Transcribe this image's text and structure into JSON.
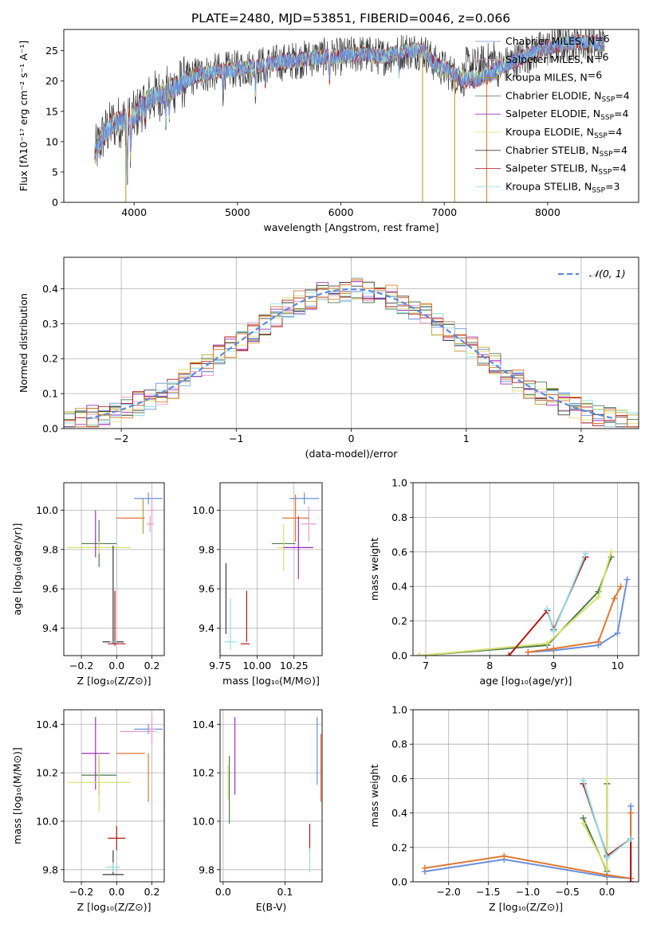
{
  "figure_title": "PLATE=2480, MJD=53851, FIBERID=0046, z=0.066",
  "model_colors": [
    "#6a8fdb",
    "#e89ad0",
    "#b8a030",
    "#4f7a4f",
    "#9a30c0",
    "#d9e070",
    "#3a3a3a",
    "#b01818",
    "#90e0e8"
  ],
  "emph_colors": {
    "orange": "#e07830",
    "purple": "#9a30c0"
  },
  "legend": {
    "entries": [
      {
        "name": "Chabrier MILES",
        "sub": "",
        "suffix": "=6"
      },
      {
        "name": "Salpeter MILES",
        "sub": "",
        "suffix": "=6"
      },
      {
        "name": "Kroupa MILES",
        "sub": "",
        "suffix": "=6"
      },
      {
        "name": "Chabrier ELODIE",
        "sub": "SSP",
        "suffix": "=4"
      },
      {
        "name": "Salpeter ELODIE",
        "sub": "SSP",
        "suffix": "=4"
      },
      {
        "name": "Kroupa ELODIE",
        "sub": "SSP",
        "suffix": "=4"
      },
      {
        "name": "Chabrier STELIB",
        "sub": "SSP",
        "suffix": "=4"
      },
      {
        "name": "Salpeter STELIB",
        "sub": "SSP",
        "suffix": "=4"
      },
      {
        "name": "Kroupa STELIB",
        "sub": "SSP",
        "suffix": "=3"
      }
    ],
    "gauss_label": "𝒩(0, 1)"
  },
  "chart_data": [
    {
      "id": "spectrum",
      "type": "line",
      "xlabel": "wavelength [Angstrom, rest frame]",
      "ylabel": "Flux [f_λ10^-17 erg cm^-2 s^-1 A^-1]",
      "xlim": [
        3320,
        8880
      ],
      "ylim": [
        0,
        28.5
      ],
      "xticks": [
        4000,
        5000,
        6000,
        7000,
        8000
      ],
      "yticks": [
        0,
        5,
        10,
        15,
        20,
        25
      ],
      "continuum": [
        [
          3620,
          8
        ],
        [
          3700,
          11
        ],
        [
          3800,
          13
        ],
        [
          3900,
          13.5
        ],
        [
          4000,
          14
        ],
        [
          4100,
          16.5
        ],
        [
          4200,
          17.5
        ],
        [
          4300,
          18
        ],
        [
          4400,
          19
        ],
        [
          4600,
          21
        ],
        [
          4800,
          21.5
        ],
        [
          5000,
          22
        ],
        [
          5200,
          22.5
        ],
        [
          5400,
          23
        ],
        [
          5600,
          23.5
        ],
        [
          5800,
          24
        ],
        [
          6000,
          24
        ],
        [
          6200,
          24.5
        ],
        [
          6400,
          24
        ],
        [
          6600,
          25
        ],
        [
          6800,
          25
        ],
        [
          6900,
          23
        ],
        [
          7000,
          22
        ],
        [
          7100,
          21
        ],
        [
          7200,
          20.5
        ],
        [
          7300,
          20.5
        ],
        [
          7400,
          21
        ],
        [
          7500,
          22
        ],
        [
          7700,
          23.5
        ],
        [
          7900,
          25
        ],
        [
          8100,
          26
        ],
        [
          8300,
          26.5
        ],
        [
          8500,
          26
        ]
      ],
      "absorption_lines": [
        [
          3934,
          10
        ],
        [
          3968,
          6
        ],
        [
          4101,
          3
        ],
        [
          4304,
          4
        ],
        [
          4340,
          3
        ],
        [
          4861,
          3
        ],
        [
          5175,
          4
        ],
        [
          5270,
          3
        ],
        [
          5890,
          4
        ],
        [
          6563,
          4
        ]
      ],
      "spikes": [
        [
          3920,
          0
        ],
        [
          6790,
          0
        ],
        [
          7100,
          0
        ],
        [
          7410,
          0
        ],
        [
          8550,
          26
        ]
      ]
    },
    {
      "id": "residuals",
      "type": "histogram",
      "xlabel": "(data-model)/error",
      "ylabel": "Normed distribution",
      "xlim": [
        -2.5,
        2.5
      ],
      "ylim": [
        0,
        0.49
      ],
      "xticks": [
        -2,
        -1,
        0,
        1,
        2
      ],
      "yticks": [
        0.0,
        0.1,
        0.2,
        0.3,
        0.4
      ],
      "bin_width": 0.1,
      "gaussian": {
        "mu": 0,
        "sigma": 1
      }
    },
    {
      "id": "age_vs_Z",
      "type": "scatter",
      "xlabel": "Z [log10(Z/Z⊙)]",
      "ylabel": "age  [log10(age/yr)]",
      "xlim": [
        -0.3,
        0.27
      ],
      "ylim": [
        9.26,
        10.14
      ],
      "xticks": [
        -0.2,
        0.0,
        0.2
      ],
      "yticks": [
        9.4,
        9.6,
        9.8,
        10.0
      ],
      "crosses": [
        {
          "x": 0.18,
          "y": 10.06,
          "xerr": 0.08,
          "yerr": 0.03,
          "c": 0
        },
        {
          "x": 0.2,
          "y": 10.0,
          "xerr": 0.02,
          "yerr": 0.07,
          "c": 1
        },
        {
          "x": 0.15,
          "y": 9.97,
          "xerr": 0.0,
          "yerr": 0.09,
          "c": 2
        },
        {
          "x": 0.08,
          "y": 9.96,
          "xerr": 0.08,
          "yerr": 0.0,
          "c": "orange"
        },
        {
          "x": 0.19,
          "y": 9.93,
          "xerr": 0.02,
          "yerr": 0.04,
          "c": 1
        },
        {
          "x": -0.1,
          "y": 9.83,
          "xerr": 0.1,
          "yerr": 0.12,
          "c": 3
        },
        {
          "x": -0.1,
          "y": 9.81,
          "xerr": 0.18,
          "yerr": 0.03,
          "c": 5
        },
        {
          "x": -0.12,
          "y": 9.88,
          "xerr": 0.0,
          "yerr": 0.12,
          "c": 4
        },
        {
          "x": -0.02,
          "y": 9.57,
          "xerr": 0.0,
          "yerr": 0.25,
          "c": 6
        },
        {
          "x": -0.02,
          "y": 9.33,
          "xerr": 0.06,
          "yerr": 0.0,
          "c": 6
        },
        {
          "x": -0.01,
          "y": 9.45,
          "xerr": 0.0,
          "yerr": 0.14,
          "c": 7
        },
        {
          "x": 0.0,
          "y": 9.32,
          "xerr": 0.05,
          "yerr": 0.0,
          "c": 7
        },
        {
          "x": -0.02,
          "y": 9.33,
          "xerr": 0.02,
          "yerr": 0.0,
          "c": 8
        }
      ]
    },
    {
      "id": "age_vs_mass",
      "type": "scatter",
      "xlabel": "mass [log10(M/M⊙)]",
      "ylabel": "",
      "xlim": [
        9.75,
        10.44
      ],
      "ylim": [
        9.26,
        10.14
      ],
      "xticks": [
        9.75,
        10.0,
        10.25
      ],
      "yticks": [
        9.4,
        9.6,
        9.8,
        10.0
      ],
      "crosses": [
        {
          "x": 10.32,
          "y": 10.06,
          "xerr": 0.1,
          "yerr": 0.03,
          "c": 0
        },
        {
          "x": 10.35,
          "y": 9.93,
          "xerr": 0.05,
          "yerr": 0.09,
          "c": 1
        },
        {
          "x": 10.26,
          "y": 9.96,
          "xerr": 0.09,
          "yerr": 0.12,
          "c": "orange"
        },
        {
          "x": 10.18,
          "y": 9.83,
          "xerr": 0.08,
          "yerr": 0.0,
          "c": 3
        },
        {
          "x": 10.18,
          "y": 9.81,
          "xerr": 0.04,
          "yerr": 0.12,
          "c": 5
        },
        {
          "x": 10.28,
          "y": 9.81,
          "xerr": 0.1,
          "yerr": 0.16,
          "c": 4
        },
        {
          "x": 9.79,
          "y": 9.55,
          "xerr": 0.0,
          "yerr": 0.18,
          "c": 6
        },
        {
          "x": 9.93,
          "y": 9.46,
          "xerr": 0.0,
          "yerr": 0.13,
          "c": 7
        },
        {
          "x": 9.92,
          "y": 9.32,
          "xerr": 0.03,
          "yerr": 0.0,
          "c": 7
        },
        {
          "x": 9.82,
          "y": 9.42,
          "xerr": 0.0,
          "yerr": 0.13,
          "c": 8
        },
        {
          "x": 9.82,
          "y": 9.33,
          "xerr": 0.04,
          "yerr": 0.0,
          "c": 8
        }
      ]
    },
    {
      "id": "massweight_vs_age",
      "type": "line",
      "xlabel": "age  [log10(age/yr)]",
      "ylabel": "mass weight",
      "xlim": [
        6.8,
        10.33
      ],
      "ylim": [
        0,
        1.0
      ],
      "xticks": [
        7,
        8,
        9,
        10
      ],
      "yticks": [
        0.0,
        0.2,
        0.4,
        0.6,
        0.8,
        1.0
      ],
      "series": [
        {
          "c": 0,
          "x": [
            8.6,
            9.0,
            9.7,
            10.0,
            10.15
          ],
          "y": [
            0.02,
            0.03,
            0.06,
            0.13,
            0.44
          ]
        },
        {
          "c": "orange",
          "x": [
            8.6,
            9.0,
            9.7,
            9.95,
            10.05
          ],
          "y": [
            0.02,
            0.04,
            0.08,
            0.33,
            0.4
          ]
        },
        {
          "c": 3,
          "x": [
            6.9,
            8.9,
            9.7,
            9.9
          ],
          "y": [
            0.0,
            0.06,
            0.37,
            0.57
          ]
        },
        {
          "c": 5,
          "x": [
            6.9,
            8.9,
            9.7,
            9.9
          ],
          "y": [
            0.0,
            0.07,
            0.34,
            0.6
          ]
        },
        {
          "c": 7,
          "x": [
            8.3,
            8.9,
            9.0,
            9.5
          ],
          "y": [
            0.0,
            0.26,
            0.15,
            0.57
          ]
        },
        {
          "c": 8,
          "x": [
            8.9,
            9.0,
            9.5
          ],
          "y": [
            0.27,
            0.14,
            0.59
          ]
        }
      ]
    },
    {
      "id": "mass_vs_Z",
      "type": "scatter",
      "xlabel": "Z [log10(Z/Z⊙)]",
      "ylabel": "mass [log10(M/M⊙)]",
      "xlim": [
        -0.3,
        0.27
      ],
      "ylim": [
        9.75,
        10.46
      ],
      "xticks": [
        -0.2,
        0.0,
        0.2
      ],
      "yticks": [
        9.8,
        10.0,
        10.2,
        10.4
      ],
      "crosses": [
        {
          "x": 0.18,
          "y": 10.38,
          "xerr": 0.08,
          "yerr": 0.02,
          "c": 0
        },
        {
          "x": 0.2,
          "y": 10.38,
          "xerr": 0.02,
          "yerr": 0.06,
          "c": 1
        },
        {
          "x": 0.12,
          "y": 10.37,
          "xerr": 0.1,
          "yerr": 0.0,
          "c": 1
        },
        {
          "x": 0.18,
          "y": 10.18,
          "xerr": 0.0,
          "yerr": 0.1,
          "c": "orange"
        },
        {
          "x": 0.08,
          "y": 10.28,
          "xerr": 0.08,
          "yerr": 0.0,
          "c": "orange"
        },
        {
          "x": -0.1,
          "y": 10.19,
          "xerr": 0.1,
          "yerr": 0.08,
          "c": 3
        },
        {
          "x": -0.12,
          "y": 10.28,
          "xerr": 0.0,
          "yerr": 0.15,
          "c": 4
        },
        {
          "x": -0.12,
          "y": 10.28,
          "xerr": 0.08,
          "yerr": 0.0,
          "c": 4
        },
        {
          "x": -0.1,
          "y": 10.16,
          "xerr": 0.18,
          "yerr": 0.12,
          "c": 5
        },
        {
          "x": -0.02,
          "y": 9.78,
          "xerr": 0.06,
          "yerr": 0.0,
          "c": 6
        },
        {
          "x": -0.02,
          "y": 9.83,
          "xerr": 0.0,
          "yerr": 0.05,
          "c": 6
        },
        {
          "x": 0.0,
          "y": 9.93,
          "xerr": 0.05,
          "yerr": 0.0,
          "c": 7
        },
        {
          "x": 0.0,
          "y": 9.93,
          "xerr": 0.0,
          "yerr": 0.05,
          "c": 7
        },
        {
          "x": -0.02,
          "y": 9.81,
          "xerr": 0.04,
          "yerr": 0.02,
          "c": 8
        }
      ]
    },
    {
      "id": "mass_vs_EBV",
      "type": "scatter",
      "xlabel": "E(B-V)",
      "ylabel": "",
      "xlim": [
        -0.005,
        0.16
      ],
      "ylim": [
        9.75,
        10.46
      ],
      "xticks": [
        0.0,
        0.1
      ],
      "yticks": [
        9.8,
        10.0,
        10.2,
        10.4
      ],
      "crosses": [
        {
          "x": 0.152,
          "y": 10.29,
          "xerr": 0.0,
          "yerr": 0.14,
          "c": 0
        },
        {
          "x": 0.158,
          "y": 10.22,
          "xerr": 0.0,
          "yerr": 0.14,
          "c": "orange"
        },
        {
          "x": 0.008,
          "y": 10.16,
          "xerr": 0.0,
          "yerr": 0.07,
          "c": 5
        },
        {
          "x": 0.01,
          "y": 10.13,
          "xerr": 0.0,
          "yerr": 0.14,
          "c": 3
        },
        {
          "x": 0.019,
          "y": 10.27,
          "xerr": 0.0,
          "yerr": 0.16,
          "c": 4
        },
        {
          "x": 0.14,
          "y": 9.93,
          "xerr": 0.0,
          "yerr": 0.06,
          "c": 7
        },
        {
          "x": 0.14,
          "y": 9.84,
          "xerr": 0.0,
          "yerr": 0.05,
          "c": 8
        }
      ]
    },
    {
      "id": "massweight_vs_Z",
      "type": "line",
      "xlabel": "Z [log10(Z/Z⊙)]",
      "ylabel": "mass weight",
      "xlim": [
        -2.45,
        0.4
      ],
      "ylim": [
        0,
        1.0
      ],
      "xticks": [
        -2.0,
        -1.5,
        -1.0,
        -0.5,
        0.0
      ],
      "yticks": [
        0.0,
        0.2,
        0.4,
        0.6,
        0.8,
        1.0
      ],
      "series": [
        {
          "c": 0,
          "x": [
            -2.3,
            -1.3,
            0.0,
            0.3,
            0.3
          ],
          "y": [
            0.06,
            0.13,
            0.03,
            0.02,
            0.44
          ]
        },
        {
          "c": "orange",
          "x": [
            -2.3,
            -1.3,
            0.0,
            0.3,
            0.3
          ],
          "y": [
            0.08,
            0.15,
            0.04,
            0.02,
            0.4
          ]
        },
        {
          "c": 3,
          "x": [
            -0.3,
            0.0,
            0.0
          ],
          "y": [
            0.37,
            0.06,
            0.57
          ]
        },
        {
          "c": 5,
          "x": [
            -0.3,
            0.0,
            0.0
          ],
          "y": [
            0.34,
            0.07,
            0.6
          ]
        },
        {
          "c": 7,
          "x": [
            -0.3,
            0.0,
            0.3,
            0.3
          ],
          "y": [
            0.57,
            0.15,
            0.25,
            0.0
          ]
        },
        {
          "c": 8,
          "x": [
            -0.3,
            0.0,
            0.3
          ],
          "y": [
            0.59,
            0.14,
            0.25
          ]
        }
      ]
    }
  ]
}
